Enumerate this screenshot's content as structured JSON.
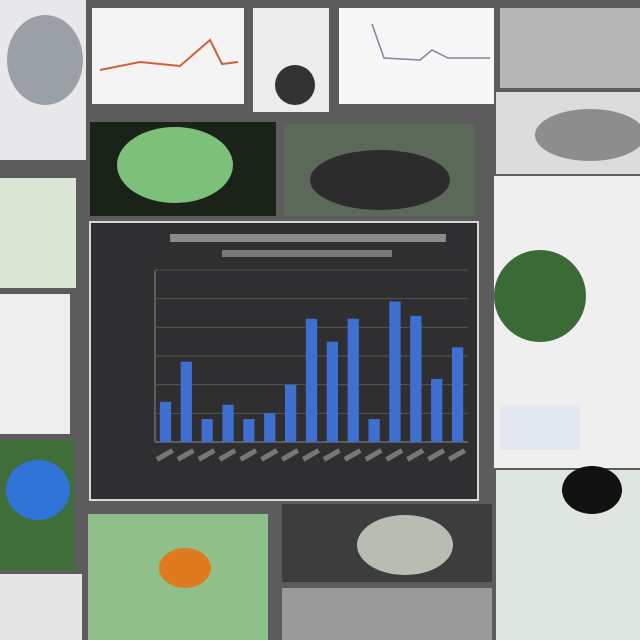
{
  "chart_data": {
    "type": "bar",
    "values": [
      1.4,
      2.8,
      0.8,
      1.3,
      0.8,
      1.0,
      2.0,
      4.3,
      3.5,
      4.3,
      0.8,
      4.9,
      4.4,
      2.2,
      3.3
    ],
    "color": "#3f6fd1",
    "ylim": [
      0,
      6
    ],
    "grid": true
  }
}
